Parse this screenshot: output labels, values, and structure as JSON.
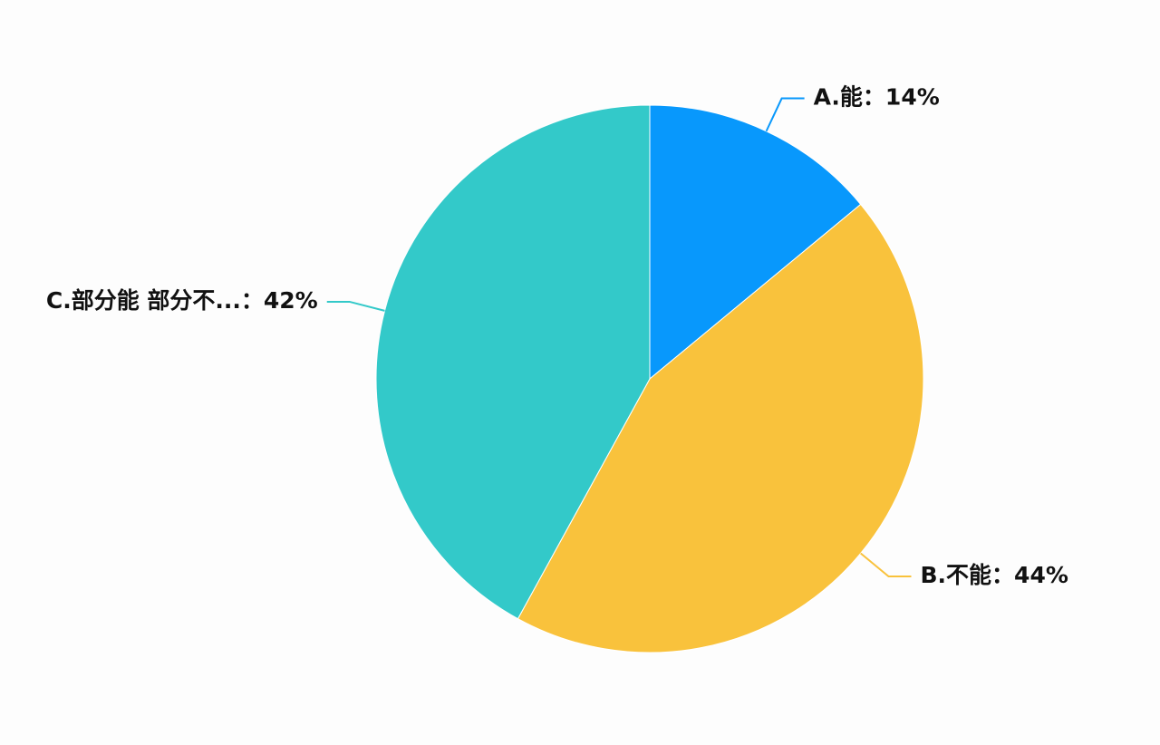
{
  "chart_data": {
    "type": "pie",
    "values": [
      14,
      44,
      42
    ],
    "value_labels": [
      "A.能：14%",
      "B.不能：44%",
      "C.部分能 部分不...：42%"
    ],
    "colors": [
      "#0898fc",
      "#f9c23c",
      "#33c9c9"
    ]
  }
}
